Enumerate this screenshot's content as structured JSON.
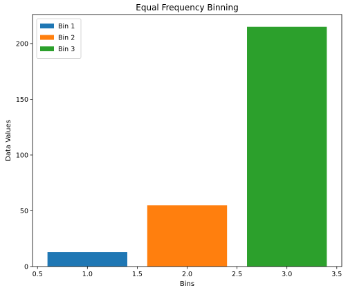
{
  "chart_data": {
    "type": "bar",
    "title": "Equal Frequency Binning",
    "xlabel": "Bins",
    "ylabel": "Data Values",
    "xlim": [
      0.45,
      3.55
    ],
    "ylim": [
      0,
      226
    ],
    "xticks": [
      0.5,
      1.0,
      1.5,
      2.0,
      2.5,
      3.0,
      3.5
    ],
    "xtick_labels": [
      "0.5",
      "1.0",
      "1.5",
      "2.0",
      "2.5",
      "3.0",
      "3.5"
    ],
    "yticks": [
      0,
      50,
      100,
      150,
      200
    ],
    "ytick_labels": [
      "0",
      "50",
      "100",
      "150",
      "200"
    ],
    "bar_width": 0.8,
    "grid": false,
    "legend_position": "top-left",
    "series": [
      {
        "name": "Bin 1",
        "x": 1,
        "value": 13,
        "color": "#1f77b4"
      },
      {
        "name": "Bin 2",
        "x": 2,
        "value": 55,
        "color": "#ff7f0e"
      },
      {
        "name": "Bin 3",
        "x": 3,
        "value": 215,
        "color": "#2ca02c"
      }
    ]
  }
}
